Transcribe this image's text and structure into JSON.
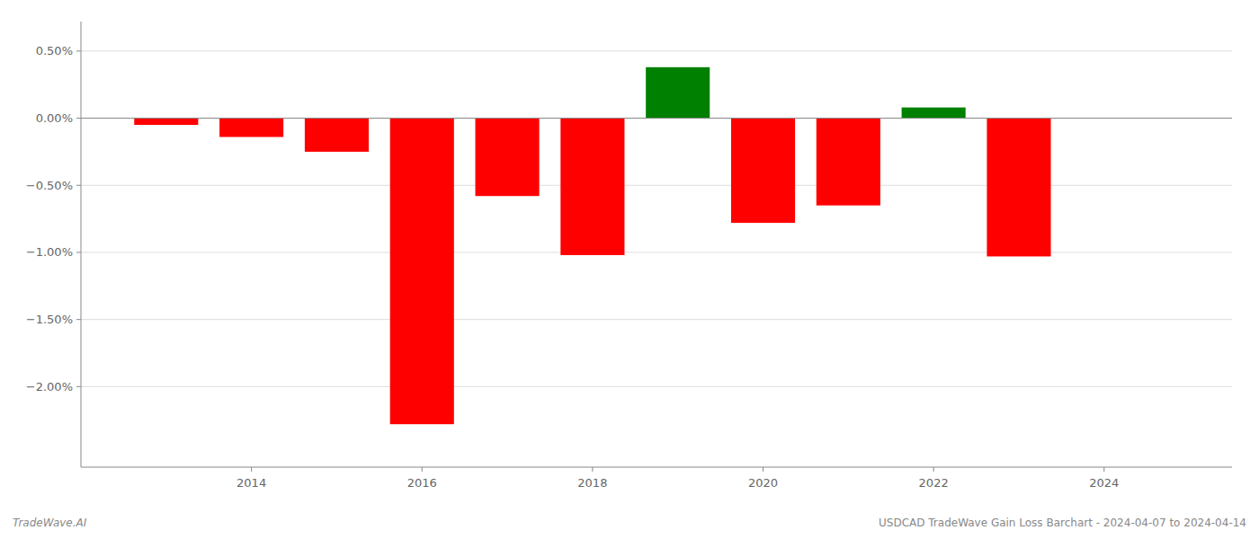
{
  "chart_data": {
    "type": "bar",
    "title": "USDCAD TradeWave Gain Loss Barchart - 2024-04-07 to 2024-04-14",
    "annotations": [
      "TradeWave.AI"
    ],
    "x": [
      2013,
      2014,
      2015,
      2016,
      2017,
      2018,
      2019,
      2020,
      2021,
      2022,
      2023
    ],
    "values": [
      -0.05,
      -0.14,
      -0.25,
      -2.28,
      -0.58,
      -1.02,
      0.38,
      -0.78,
      -0.65,
      0.08,
      -1.03
    ],
    "colors": [
      "#ff0000",
      "#ff0000",
      "#ff0000",
      "#ff0000",
      "#ff0000",
      "#ff0000",
      "#008000",
      "#ff0000",
      "#ff0000",
      "#008000",
      "#ff0000"
    ],
    "xlim": [
      2012.0,
      2025.5
    ],
    "xticks": [
      2014,
      2016,
      2018,
      2020,
      2022,
      2024
    ],
    "ylim": [
      -2.6,
      0.72
    ],
    "yticks": [
      {
        "value": 0.5,
        "label": "0.50%"
      },
      {
        "value": 0.0,
        "label": "0.00%"
      },
      {
        "value": -0.5,
        "label": "−0.50%"
      },
      {
        "value": -1.0,
        "label": "−1.00%"
      },
      {
        "value": -1.5,
        "label": "−1.50%"
      },
      {
        "value": -2.0,
        "label": "−2.00%"
      }
    ],
    "grid": true
  }
}
